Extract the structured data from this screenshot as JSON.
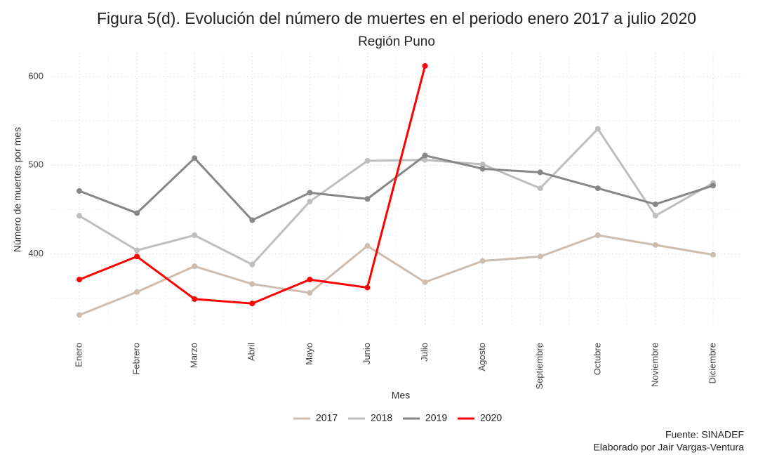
{
  "chart_data": {
    "type": "line",
    "title": "Figura 5(d). Evolución del número de muertes en el periodo enero 2017 a julio 2020",
    "subtitle": "Región Puno",
    "y_label": "Número de muertes por mes",
    "x_label": "Mes",
    "caption": [
      "Fuente: SINADEF",
      "Elaborado por Jair Vargas-Ventura"
    ],
    "categories": [
      "Enero",
      "Febrero",
      "Marzo",
      "Abril",
      "Mayo",
      "Junio",
      "Julio",
      "Agosto",
      "Septiembre",
      "Octubre",
      "Noviembre",
      "Diciembre"
    ],
    "series": [
      {
        "name": "2017",
        "color": "#ccbdaf",
        "values": [
          331,
          357,
          386,
          366,
          356,
          409,
          368,
          392,
          397,
          421,
          410,
          399
        ]
      },
      {
        "name": "2018",
        "color": "#bebebe",
        "values": [
          443,
          404,
          421,
          388,
          459,
          505,
          506,
          501,
          474,
          541,
          443,
          480
        ]
      },
      {
        "name": "2019",
        "color": "#878787",
        "values": [
          471,
          446,
          508,
          438,
          469,
          462,
          511,
          496,
          492,
          474,
          456,
          477
        ]
      },
      {
        "name": "2020",
        "color": "#ff0000",
        "values": [
          371,
          397,
          349,
          344,
          371,
          362,
          612,
          null,
          null,
          null,
          null,
          null
        ]
      }
    ],
    "ylim": [
      318,
      627
    ],
    "yticks": [
      400,
      500,
      600
    ],
    "grid": true,
    "legend": "bottom"
  }
}
